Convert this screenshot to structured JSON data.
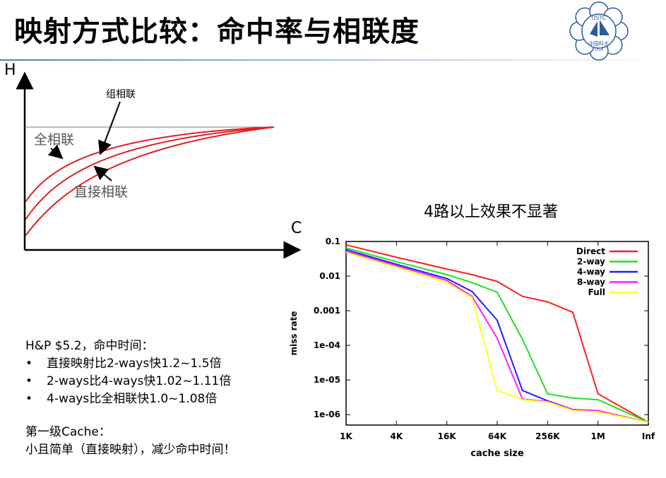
{
  "title": "映射方式比较：命中率与相联度",
  "logo": {
    "text": "USTC",
    "subtext": "中国科大",
    "year": "1958",
    "color": "#2b5d9c"
  },
  "curve_figure": {
    "y_axis_label": "H",
    "x_axis_label": "C",
    "labels": {
      "set_assoc": "组相联",
      "fully_assoc": "全相联",
      "direct": "直接相联"
    },
    "curve_color": "#e02020"
  },
  "chart_title": "4路以上效果不显著",
  "notes": {
    "heading": "H&P $5.2，命中时间：",
    "bullets": [
      "直接映射比2-ways快1.2~1.5倍",
      "2-ways比4-ways快1.02~1.11倍",
      "4-ways比全相联快1.0~1.08倍"
    ],
    "bullet_glyph": "•",
    "footer_title": "第一级Cache：",
    "footer_text": "小且简单（直接映射），减少命中时间！"
  },
  "chart_data": {
    "type": "line",
    "xlabel": "cache size",
    "ylabel": "miss rate",
    "x_ticks": [
      "1K",
      "4K",
      "16K",
      "64K",
      "256K",
      "1M",
      "Inf"
    ],
    "y_ticks": [
      "0.1",
      "0.01",
      "0.001",
      "1e-04",
      "1e-05",
      "1e-06"
    ],
    "y_scale": "log",
    "ylim": [
      5e-07,
      0.1
    ],
    "x_positions": [
      "1K",
      "4K",
      "16K",
      "32K",
      "64K",
      "128K",
      "256K",
      "512K",
      "1M",
      "Inf"
    ],
    "series": [
      {
        "name": "Direct",
        "color": "#ff2020",
        "values": [
          0.08,
          0.035,
          0.016,
          0.011,
          0.007,
          0.0026,
          0.0018,
          0.0009,
          4e-06,
          6e-07
        ]
      },
      {
        "name": "2-way",
        "color": "#20e020",
        "values": [
          0.065,
          0.026,
          0.011,
          0.0065,
          0.0034,
          0.00015,
          4e-06,
          3e-06,
          2.7e-06,
          6e-07
        ]
      },
      {
        "name": "4-way",
        "color": "#2020ff",
        "values": [
          0.058,
          0.022,
          0.0085,
          0.0036,
          0.00053,
          5e-06,
          2.5e-06,
          1.4e-06,
          1.3e-06,
          6e-07
        ]
      },
      {
        "name": "8-way",
        "color": "#ff20ff",
        "values": [
          0.052,
          0.02,
          0.0075,
          0.0026,
          0.00016,
          2.8e-06,
          2.4e-06,
          1.4e-06,
          1.3e-06,
          6e-07
        ]
      },
      {
        "name": "Full",
        "color": "#ffff20",
        "values": [
          0.048,
          0.018,
          0.0065,
          0.0024,
          5e-06,
          2.7e-06,
          2.3e-06,
          1.3e-06,
          1.2e-06,
          6e-07
        ]
      }
    ],
    "legend_position": "top-right",
    "grid": false
  }
}
